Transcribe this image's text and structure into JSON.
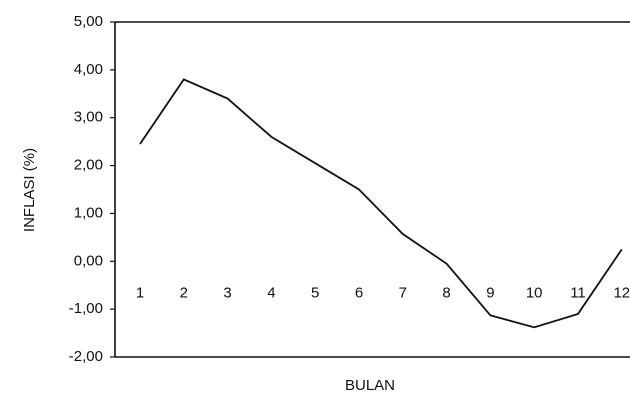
{
  "chart_data": {
    "type": "line",
    "y_label": "INFLASI (%)",
    "x_label": "BULAN",
    "categories": [
      "1",
      "2",
      "3",
      "4",
      "5",
      "6",
      "7",
      "8",
      "9",
      "10",
      "11",
      "12"
    ],
    "values": [
      2.45,
      3.8,
      3.4,
      2.6,
      2.05,
      1.5,
      0.57,
      -0.05,
      -1.13,
      -1.38,
      -1.1,
      0.25
    ],
    "color": "#111111",
    "ylim": [
      -2,
      5
    ],
    "yticks": [
      {
        "value": -2,
        "label": "-2,00"
      },
      {
        "value": -1,
        "label": "-1,00"
      },
      {
        "value": 0,
        "label": "0,00"
      },
      {
        "value": 1,
        "label": "1,00"
      },
      {
        "value": 2,
        "label": "2,00"
      },
      {
        "value": 3,
        "label": "3,00"
      },
      {
        "value": 4,
        "label": "4,00"
      },
      {
        "value": 5,
        "label": "5,00"
      }
    ],
    "grid": false
  }
}
